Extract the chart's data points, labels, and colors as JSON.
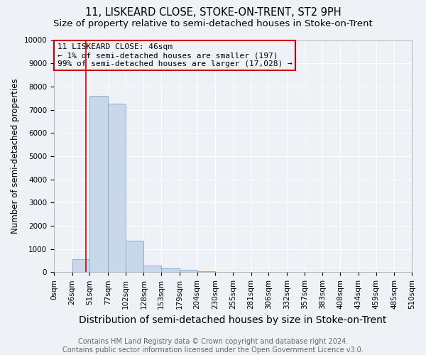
{
  "title": "11, LISKEARD CLOSE, STOKE-ON-TRENT, ST2 9PH",
  "subtitle": "Size of property relative to semi-detached houses in Stoke-on-Trent",
  "xlabel": "Distribution of semi-detached houses by size in Stoke-on-Trent",
  "ylabel": "Number of semi-detached properties",
  "footer": "Contains HM Land Registry data © Crown copyright and database right 2024.\nContains public sector information licensed under the Open Government Licence v3.0.",
  "bin_edges": [
    0,
    26,
    51,
    77,
    102,
    128,
    153,
    179,
    204,
    230,
    255,
    281,
    306,
    332,
    357,
    383,
    408,
    434,
    459,
    485,
    510
  ],
  "bar_heights": [
    0,
    550,
    7600,
    7250,
    1350,
    300,
    150,
    100,
    50,
    20,
    8,
    5,
    3,
    2,
    1,
    1,
    0,
    0,
    0,
    0
  ],
  "bar_color": "#c8d8ea",
  "bar_edge_color": "#7aaac8",
  "property_size": 46,
  "red_line_color": "#cc0000",
  "annotation_text": "11 LISKEARD CLOSE: 46sqm\n← 1% of semi-detached houses are smaller (197)\n99% of semi-detached houses are larger (17,028) →",
  "annotation_box_color": "#cc0000",
  "ylim": [
    0,
    10000
  ],
  "yticks": [
    0,
    1000,
    2000,
    3000,
    4000,
    5000,
    6000,
    7000,
    8000,
    9000,
    10000
  ],
  "background_color": "#eef2f7",
  "grid_color": "#ffffff",
  "title_fontsize": 10.5,
  "subtitle_fontsize": 9.5,
  "xlabel_fontsize": 10,
  "ylabel_fontsize": 8.5,
  "tick_fontsize": 7.5,
  "footer_fontsize": 7,
  "ann_fontsize": 8
}
